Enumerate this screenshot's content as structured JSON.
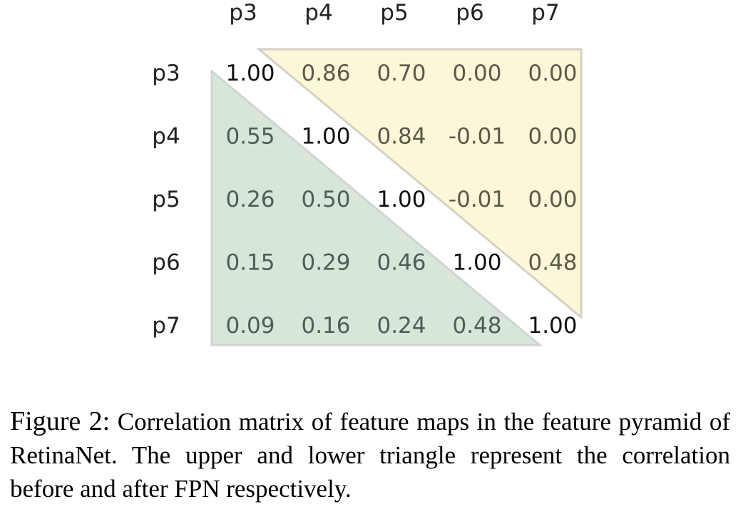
{
  "chart_data": {
    "type": "heatmap",
    "columns": [
      "p3",
      "p4",
      "p5",
      "p6",
      "p7"
    ],
    "rows": [
      "p3",
      "p4",
      "p5",
      "p6",
      "p7"
    ],
    "cells": [
      [
        "1.00",
        "0.86",
        "0.70",
        "0.00",
        "0.00"
      ],
      [
        "0.55",
        "1.00",
        "0.84",
        "-0.01",
        "0.00"
      ],
      [
        "0.26",
        "0.50",
        "1.00",
        "-0.01",
        "0.00"
      ],
      [
        "0.15",
        "0.29",
        "0.46",
        "1.00",
        "0.48"
      ],
      [
        "0.09",
        "0.16",
        "0.24",
        "0.48",
        "1.00"
      ]
    ],
    "colors": {
      "upper_fill": "#fcf7d8",
      "upper_stroke": "#d4d2c4",
      "lower_fill": "#d8e6da",
      "lower_stroke": "#cfd6d0",
      "diagonal_text": "#111111",
      "upper_text": "#5a5a4a",
      "lower_text": "#4e5e56",
      "label_text": "#222222"
    }
  },
  "caption": {
    "label": "Figure 2:",
    "text": "Correlation matrix of feature maps in the feature pyramid of RetinaNet. The upper and lower triangle represent the correlation before and after FPN respectively."
  }
}
